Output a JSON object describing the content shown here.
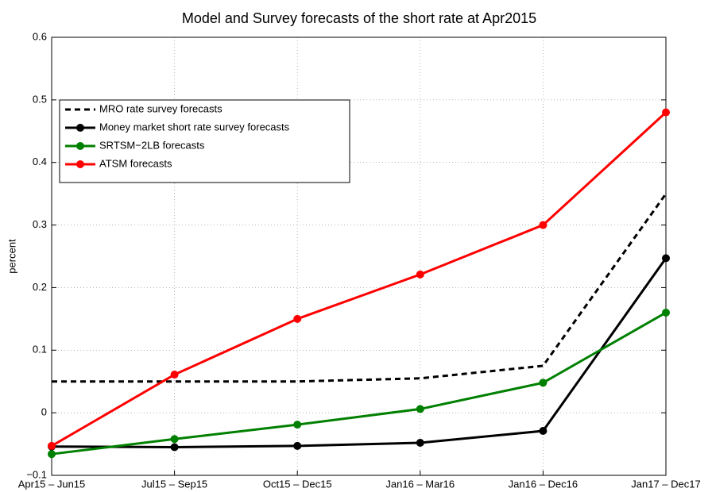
{
  "chart_data": {
    "type": "line",
    "title": "Model and Survey forecasts of the short rate at Apr2015",
    "y_label": "percent",
    "categories": [
      "Apr15 – Jun15",
      "Jul15 – Sep15",
      "Oct15 – Dec15",
      "Jan16 – Mar16",
      "Jan16 – Dec16",
      "Jan17 – Dec17"
    ],
    "series": [
      {
        "name": "MRO rate survey forecasts",
        "color": "#000000",
        "line_style": "dashed",
        "markers": false,
        "values": [
          0.05,
          0.05,
          0.05,
          0.055,
          0.075,
          0.35
        ]
      },
      {
        "name": "Money market short rate survey forecasts",
        "color": "#000000",
        "line_style": "solid",
        "markers": true,
        "values": [
          -0.054,
          -0.055,
          -0.053,
          -0.048,
          -0.029,
          0.247
        ]
      },
      {
        "name": "SRTSM−2LB forecasts",
        "color": "#008000",
        "line_style": "solid",
        "markers": true,
        "values": [
          -0.066,
          -0.042,
          -0.019,
          0.006,
          0.048,
          0.16
        ]
      },
      {
        "name": "ATSM forecasts",
        "color": "#ff0000",
        "line_style": "solid",
        "markers": true,
        "values": [
          -0.053,
          0.061,
          0.15,
          0.221,
          0.3,
          0.48
        ]
      }
    ],
    "ylim": [
      -0.1,
      0.6
    ],
    "yticks": [
      {
        "value": -0.1,
        "label": "−0.1"
      },
      0,
      0.1,
      0.2,
      0.3,
      0.4,
      0.5,
      0.6
    ],
    "grid": true,
    "legend_position": "upper-left"
  }
}
